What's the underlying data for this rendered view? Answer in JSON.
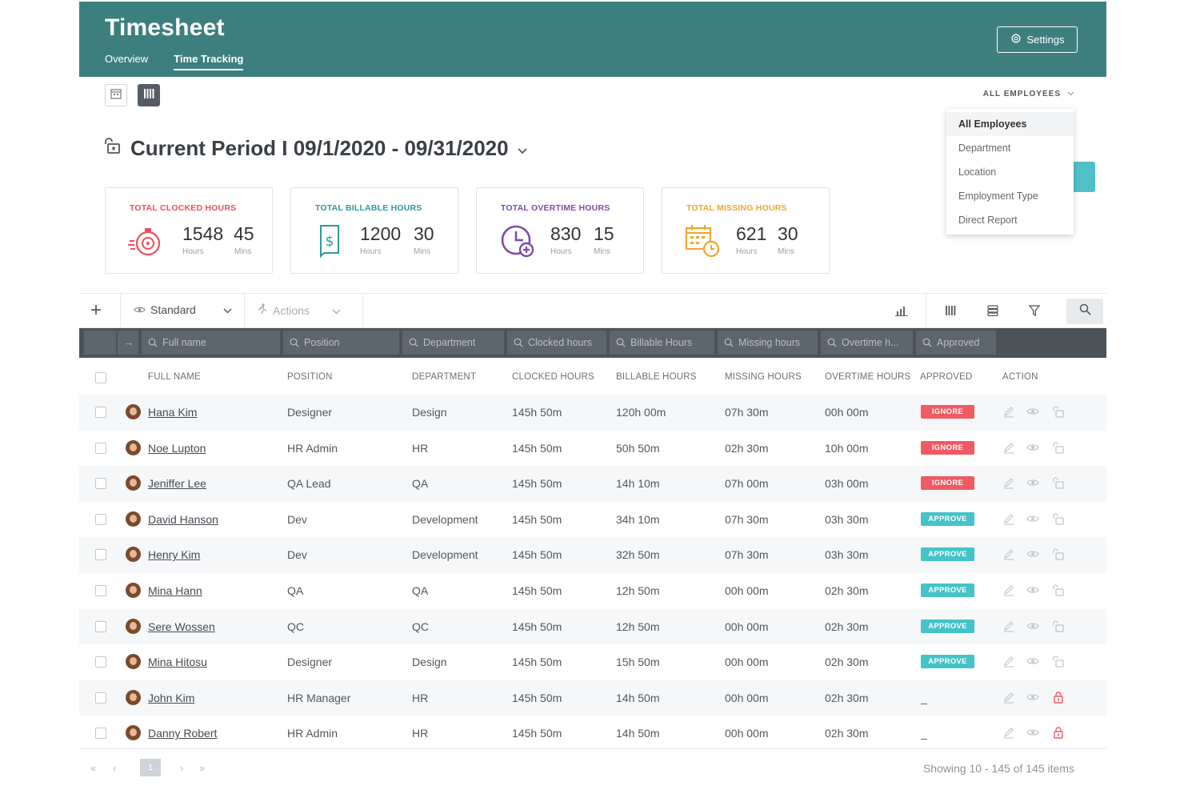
{
  "header": {
    "title": "Timesheet",
    "nav": [
      "Overview",
      "Time Tracking"
    ],
    "active_nav": "Time Tracking",
    "settings_label": "Settings",
    "color": "#3d7f7f"
  },
  "filter": {
    "employees_label": "ALL EMPLOYEES",
    "options": [
      "All Employees",
      "Department",
      "Location",
      "Employment Type",
      "Direct Report"
    ],
    "selected": "All Employees"
  },
  "period": {
    "label": "Current Period I 09/1/2020 - 09/31/2020"
  },
  "cards": [
    {
      "title": "TOTAL CLOCKED HOURS",
      "hours": "1548",
      "mins": "45",
      "hours_label": "Hours",
      "mins_label": "Mins",
      "color": "#ef4f5a",
      "icon": "stopwatch-icon"
    },
    {
      "title": "TOTAL BILLABLE HOURS",
      "hours": "1200",
      "mins": "30",
      "hours_label": "Hours",
      "mins_label": "Mins",
      "color": "#2e9a99",
      "icon": "invoice-icon"
    },
    {
      "title": "TOTAL OVERTIME HOURS",
      "hours": "830",
      "mins": "15",
      "hours_label": "Hours",
      "mins_label": "Mins",
      "color": "#7d4bb0",
      "icon": "clock-plus-icon"
    },
    {
      "title": "TOTAL MISSING HOURS",
      "hours": "621",
      "mins": "30",
      "hours_label": "Hours",
      "mins_label": "Mins",
      "color": "#f2a52b",
      "icon": "calendar-clock-icon"
    }
  ],
  "toolbar": {
    "view_label": "Standard",
    "actions_label": "Actions"
  },
  "filter_placeholders": [
    "Full name",
    "Position",
    "Department",
    "Clocked hours",
    "Billable Hours",
    "Missing hours",
    "Overtime h...",
    "Approved"
  ],
  "columns": [
    "FULL NAME",
    "POSITION",
    "DEPARTMENT",
    "CLOCKED HOURS",
    "BILLABLE HOURS",
    "MISSING HOURS",
    "OVERTIME HOURS",
    "APPROVED",
    "ACTION"
  ],
  "rows": [
    {
      "name": "Hana Kim",
      "position": "Designer",
      "department": "Design",
      "clocked": "145h 50m",
      "billable": "120h 00m",
      "missing": "07h 30m",
      "overtime": "00h 00m",
      "approved": "IGNORE",
      "status": "ignore",
      "locked": false
    },
    {
      "name": "Noe Lupton",
      "position": "HR Admin",
      "department": "HR",
      "clocked": "145h 50m",
      "billable": "50h 50m",
      "missing": "02h 30m",
      "overtime": "10h 00m",
      "approved": "IGNORE",
      "status": "ignore",
      "locked": false
    },
    {
      "name": "Jeniffer Lee",
      "position": "QA Lead",
      "department": "QA",
      "clocked": "145h 50m",
      "billable": "14h 10m",
      "missing": "07h 00m",
      "overtime": "03h 00m",
      "approved": "IGNORE",
      "status": "ignore",
      "locked": false
    },
    {
      "name": "David Hanson",
      "position": "Dev",
      "department": "Development",
      "clocked": "145h 50m",
      "billable": "34h 10m",
      "missing": "07h 30m",
      "overtime": "03h 30m",
      "approved": "APPROVE",
      "status": "approve",
      "locked": false
    },
    {
      "name": "Henry Kim",
      "position": "Dev",
      "department": "Development",
      "clocked": "145h 50m",
      "billable": "32h 50m",
      "missing": "07h 30m",
      "overtime": "03h 30m",
      "approved": "APPROVE",
      "status": "approve",
      "locked": false
    },
    {
      "name": "Mina Hann",
      "position": "QA",
      "department": "QA",
      "clocked": "145h 50m",
      "billable": "12h 50m",
      "missing": "00h 00m",
      "overtime": "02h 30m",
      "approved": "APPROVE",
      "status": "approve",
      "locked": false
    },
    {
      "name": "Sere Wossen",
      "position": "QC",
      "department": "QC",
      "clocked": "145h 50m",
      "billable": "12h 50m",
      "missing": "00h 00m",
      "overtime": "02h 30m",
      "approved": "APPROVE",
      "status": "approve",
      "locked": false
    },
    {
      "name": "Mina Hitosu",
      "position": "Designer",
      "department": "Design",
      "clocked": "145h 50m",
      "billable": "15h 50m",
      "missing": "00h 00m",
      "overtime": "02h 30m",
      "approved": "APPROVE",
      "status": "approve",
      "locked": false
    },
    {
      "name": "John Kim",
      "position": "HR Manager",
      "department": "HR",
      "clocked": "145h 50m",
      "billable": "14h 50m",
      "missing": "00h 00m",
      "overtime": "02h 30m",
      "approved": "_",
      "status": "none",
      "locked": true
    },
    {
      "name": "Danny Robert",
      "position": "HR Admin",
      "department": "HR",
      "clocked": "145h 50m",
      "billable": "14h 50m",
      "missing": "00h 00m",
      "overtime": "02h 30m",
      "approved": "_",
      "status": "none",
      "locked": true
    }
  ],
  "pagination": {
    "current_page": "1",
    "info": "Showing 10 - 145 of 145 items"
  }
}
